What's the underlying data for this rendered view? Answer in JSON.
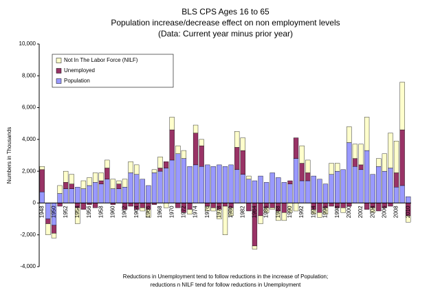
{
  "chart_data": {
    "type": "bar",
    "stacked": true,
    "title": [
      "BLS CPS Ages 16 to 65",
      "Population increase/decrease effect on non employment levels",
      "(Data: Current year minus prior year)"
    ],
    "ylabel": "Numbers in Thousands",
    "footnote": [
      "Reductions in Unemployment tend to follow reductions in the increase of Population;",
      "reductions n NILF tend for follow reductions in Unemployment"
    ],
    "legend": "upper left",
    "grid": false,
    "ylim": [
      -4000,
      10000
    ],
    "yticks": [
      {
        "value": -4000,
        "label": "-4,000"
      },
      {
        "value": -2000,
        "label": "-2,000"
      },
      0,
      {
        "value": 2000,
        "label": "2,000"
      },
      {
        "value": 4000,
        "label": "4,000"
      },
      {
        "value": 6000,
        "label": "6,000"
      },
      {
        "value": 8000,
        "label": "8,000"
      },
      {
        "value": 10000,
        "label": "10,000"
      }
    ],
    "categories": [
      "1948",
      null,
      "1950",
      null,
      "1952",
      null,
      "1954",
      null,
      "1956",
      null,
      "1958",
      null,
      "1960",
      null,
      "1962",
      null,
      "1964",
      null,
      "1966",
      null,
      "1968",
      null,
      "1970",
      null,
      "1972",
      null,
      "1974",
      null,
      "1976",
      null,
      "1978",
      null,
      "1980",
      null,
      "1982",
      null,
      "1984",
      null,
      "1986",
      null,
      "1988",
      null,
      "1990",
      null,
      "1992",
      null,
      "1994",
      null,
      "1996",
      null,
      "1998",
      null,
      "2000",
      null,
      "2002",
      null,
      "2004",
      null,
      "2006",
      null,
      "2008",
      null,
      "2010"
    ],
    "series": [
      {
        "name": "Population",
        "color": "#9999ff",
        "values": [
          700,
          -1000,
          -1400,
          600,
          900,
          900,
          1000,
          900,
          1100,
          1300,
          1200,
          1500,
          900,
          900,
          1000,
          1900,
          1800,
          1500,
          1100,
          1900,
          2000,
          2200,
          2700,
          3100,
          2800,
          2300,
          2400,
          2300,
          2400,
          2300,
          2400,
          2300,
          2400,
          2100,
          1800,
          1500,
          1400,
          1700,
          1300,
          1900,
          1600,
          1300,
          1200,
          2800,
          1400,
          1400,
          1700,
          1500,
          1200,
          1800,
          2000,
          2100,
          3800,
          2300,
          2100,
          3300,
          1800,
          2300,
          2000,
          2200,
          1000,
          1100,
          400
        ]
      },
      {
        "name": "Unemployed",
        "color": "#993366",
        "values": [
          1400,
          -300,
          -500,
          -200,
          400,
          300,
          -300,
          -400,
          -100,
          -300,
          200,
          700,
          -100,
          300,
          -400,
          -200,
          -400,
          -300,
          -400,
          -100,
          200,
          400,
          1900,
          -300,
          -600,
          -400,
          2000,
          1300,
          -200,
          -300,
          -400,
          -200,
          -300,
          1400,
          1500,
          -500,
          -2700,
          -800,
          -300,
          -300,
          -500,
          -600,
          200,
          1300,
          1100,
          500,
          -400,
          -600,
          -300,
          -200,
          -300,
          -300,
          -200,
          500,
          300,
          -400,
          -300,
          -500,
          -300,
          -200,
          900,
          3500,
          -800
        ]
      },
      {
        "name": "Not In The Labor Force (NILF)",
        "color": "#ffffcc",
        "values": [
          200,
          -700,
          -300,
          500,
          700,
          600,
          -1000,
          500,
          500,
          600,
          500,
          500,
          600,
          200,
          500,
          700,
          600,
          -200,
          -500,
          200,
          700,
          -300,
          800,
          500,
          500,
          -300,
          500,
          400,
          -300,
          -200,
          -600,
          -1800,
          -500,
          1000,
          800,
          200,
          -200,
          -500,
          -300,
          -100,
          -600,
          -500,
          -600,
          -500,
          1100,
          800,
          -300,
          -300,
          -400,
          700,
          500,
          -300,
          1000,
          900,
          1300,
          2100,
          -300,
          500,
          1100,
          2200,
          2000,
          3000,
          -400
        ]
      }
    ]
  }
}
